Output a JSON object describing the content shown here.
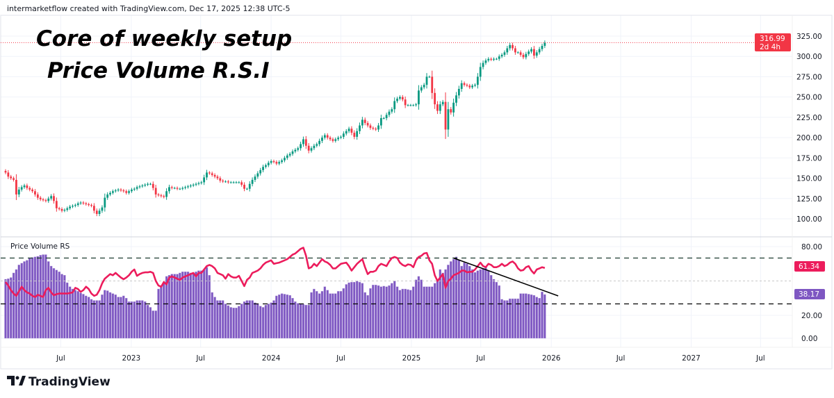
{
  "header": {
    "attribution": "intermarketflow created with TradingView.com, Dec 17, 2025 12:38 UTC-5"
  },
  "annotation": {
    "line1": "Core of weekly setup",
    "line2": "Price Volume R.S.I"
  },
  "logo": {
    "text": "TradingView",
    "icon": "tradingview-logo-icon"
  },
  "colors": {
    "up": "#089981",
    "down": "#F23645",
    "histogram": "#7E57C2",
    "rs_line": "#EC1C5C",
    "price_label": "#F23645",
    "grid": "#F0F3FA",
    "trendline": "#000000"
  },
  "chart_data": [
    {
      "type": "candlestick",
      "timeframe": "1W",
      "x_start": "2022-02-07",
      "y_ticks": [
        "100.00",
        "125.00",
        "150.00",
        "175.00",
        "200.00",
        "225.00",
        "250.00",
        "275.00",
        "300.00",
        "325.00"
      ],
      "ylim": [
        90,
        335
      ],
      "last_price": {
        "value": "316.99",
        "countdown": "2d 4h"
      },
      "closes": [
        157,
        152,
        150,
        148,
        130,
        136,
        139,
        141,
        138,
        136,
        134,
        130,
        126,
        124,
        123,
        122,
        125,
        128,
        122,
        113,
        112,
        110,
        111,
        113,
        115,
        116,
        117,
        119,
        120,
        119,
        118,
        117,
        116,
        110,
        106,
        110,
        114,
        126,
        130,
        132,
        134,
        135,
        136,
        135,
        134,
        132,
        134,
        136,
        137,
        139,
        140,
        141,
        142,
        143,
        143,
        138,
        130,
        129,
        128,
        127,
        134,
        139,
        138,
        138,
        137,
        137,
        138,
        139,
        140,
        141,
        142,
        143,
        144,
        145,
        151,
        157,
        156,
        154,
        152,
        150,
        147,
        146,
        146,
        145,
        145,
        145,
        145,
        145,
        142,
        137,
        137,
        143,
        148,
        152,
        156,
        160,
        164,
        166,
        169,
        171,
        170,
        168,
        170,
        172,
        175,
        178,
        180,
        183,
        185,
        187,
        192,
        198,
        190,
        184,
        187,
        190,
        192,
        196,
        200,
        203,
        200,
        198,
        196,
        198,
        200,
        201,
        205,
        208,
        211,
        206,
        201,
        208,
        215,
        222,
        218,
        215,
        212,
        211,
        210,
        215,
        224,
        224,
        228,
        232,
        235,
        245,
        248,
        250,
        247,
        240,
        240,
        240,
        240,
        241,
        258,
        262,
        265,
        275,
        275,
        255,
        241,
        233,
        241,
        244,
        210,
        235,
        231,
        243,
        252,
        260,
        267,
        265,
        264,
        262,
        264,
        265,
        275,
        287,
        292,
        295,
        297,
        296,
        297,
        297,
        300,
        302,
        305,
        310,
        314,
        310,
        305,
        305,
        302,
        299,
        303,
        306,
        309,
        301,
        305,
        309,
        313,
        316.99
      ],
      "grid": true
    },
    {
      "type": "bar+line",
      "title": "Price Volume RS",
      "y_ticks": [
        "0.00",
        "20.00",
        "80.00"
      ],
      "ylim": [
        -5,
        87
      ],
      "levels": [
        {
          "value": 70,
          "style": "dashed",
          "color": "#1b3a2f"
        },
        {
          "value": 50,
          "style": "dotted",
          "color": "#c8c8c8"
        },
        {
          "value": 30,
          "style": "dashed",
          "color": "#000000"
        }
      ],
      "series": [
        {
          "kind": "histogram",
          "last_label": "38.17",
          "values": [
            51.5,
            52,
            53,
            57,
            60,
            64,
            65.5,
            67,
            68,
            70,
            70.5,
            71,
            71.5,
            72.5,
            73,
            73,
            67,
            63,
            61,
            59.5,
            58,
            56,
            55,
            48.5,
            45,
            43,
            42,
            41,
            39.5,
            38.5,
            37,
            36,
            34,
            33,
            33,
            33,
            38,
            42,
            41.5,
            40,
            39,
            38,
            36,
            36,
            37,
            35,
            32,
            32,
            32,
            33,
            33,
            33,
            32,
            29,
            27,
            24,
            24,
            43,
            46,
            48,
            54,
            55,
            56,
            56,
            56,
            57,
            58,
            58,
            58,
            57,
            57,
            58,
            59,
            59,
            60,
            62,
            55,
            40,
            36,
            33,
            33,
            33,
            30,
            28.5,
            27,
            26.5,
            26.5,
            28,
            30,
            32,
            33,
            33,
            33,
            31,
            30,
            28,
            27,
            29,
            30,
            31,
            33,
            37,
            38,
            39,
            38.5,
            38,
            37.5,
            35,
            32,
            30.5,
            30,
            29.5,
            29,
            29,
            40,
            43,
            41,
            39,
            41,
            45,
            42,
            39,
            39,
            39,
            41,
            41,
            43.5,
            47,
            48.5,
            49,
            49,
            50,
            49,
            48,
            40,
            37.5,
            43.5,
            46.5,
            46.5,
            46,
            45,
            45.5,
            45,
            46,
            48,
            50,
            45,
            42,
            43,
            43,
            42.5,
            42,
            45,
            51,
            54,
            51,
            45,
            45,
            45,
            45,
            48,
            50,
            60,
            57,
            60,
            64,
            67,
            69,
            71,
            68,
            63,
            66,
            65,
            63,
            60,
            57.5,
            59,
            60,
            61,
            62,
            59,
            55,
            51.5,
            49,
            46,
            34,
            33,
            33,
            34.5,
            34.5,
            34.5,
            34.5,
            39,
            39,
            39,
            38.5,
            38,
            37.5,
            36,
            35,
            40.5,
            38.17
          ]
        },
        {
          "kind": "line",
          "last_label": "61.34",
          "values": [
            49,
            46,
            42,
            39,
            37,
            41,
            45,
            42,
            40,
            39,
            37,
            36,
            38,
            37,
            36,
            42,
            44,
            40,
            37.5,
            38.5,
            39,
            39,
            39,
            39,
            39.5,
            40,
            44,
            43,
            40.5,
            42,
            45,
            43,
            39,
            37,
            38,
            42,
            48,
            52,
            54,
            56,
            55,
            57,
            55,
            53,
            51.5,
            53,
            55,
            58,
            60,
            54.5,
            56,
            57,
            57.5,
            57.5,
            58,
            57,
            50,
            46,
            45,
            49,
            47,
            53,
            54,
            53,
            52,
            51,
            53,
            54,
            55,
            56,
            57,
            54,
            57,
            57,
            60,
            63,
            64,
            63,
            61,
            57,
            56,
            55,
            52,
            56,
            54,
            53,
            53,
            54.5,
            50,
            45.5,
            51,
            53,
            57,
            58,
            59,
            61,
            64,
            66,
            67,
            68,
            65,
            65.5,
            66,
            67,
            68,
            69,
            71,
            73,
            74,
            76,
            78,
            79,
            72,
            61,
            62,
            65,
            63,
            66,
            69,
            67,
            66,
            64,
            61,
            61,
            63,
            65,
            65.5,
            66,
            63,
            59,
            62,
            65,
            67,
            69,
            62,
            56,
            58,
            58,
            59,
            63,
            65,
            64,
            63,
            67,
            70,
            71,
            70,
            66,
            64,
            63,
            64.5,
            64,
            62,
            68,
            71,
            72,
            74,
            74.5,
            68,
            65,
            55,
            50,
            53,
            56,
            44,
            50,
            52,
            55,
            56,
            57,
            59,
            59,
            57.5,
            58,
            58,
            60,
            63,
            66,
            63,
            62,
            65,
            64,
            62,
            62,
            63,
            65,
            63,
            64,
            66,
            67,
            65,
            61,
            59,
            59.5,
            62,
            63,
            59,
            56.5,
            60,
            61,
            62,
            61.34
          ]
        }
      ],
      "trendline": {
        "from": [
          "2025-04-21",
          70
        ],
        "to": [
          "2026-01-19",
          37
        ]
      }
    }
  ],
  "time_axis": {
    "labels": [
      "Jul",
      "2023",
      "Jul",
      "2024",
      "Jul",
      "2025",
      "Jul",
      "2026",
      "Jul",
      "2027",
      "Jul"
    ],
    "dates": [
      "2022-07-01",
      "2023-01-01",
      "2023-07-01",
      "2024-01-01",
      "2024-07-01",
      "2025-01-01",
      "2025-07-01",
      "2026-01-01",
      "2026-07-01",
      "2027-01-01",
      "2027-07-01"
    ]
  }
}
